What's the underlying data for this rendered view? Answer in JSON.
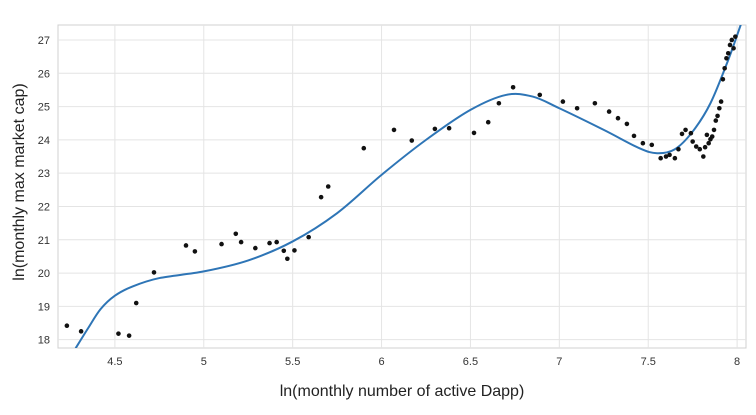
{
  "chart_data": {
    "type": "scatter",
    "xlabel": "ln(monthly number of active Dapp)",
    "ylabel": "ln(monthly max market cap)",
    "xlim": [
      4.18,
      8.05
    ],
    "ylim": [
      17.75,
      27.45
    ],
    "x_ticks": [
      4.5,
      5,
      5.5,
      6,
      6.5,
      7,
      7.5,
      8
    ],
    "x_tick_labels": [
      "4.5",
      "5",
      "5.5",
      "6",
      "6.5",
      "7",
      "7.5",
      "8"
    ],
    "y_ticks": [
      18,
      19,
      20,
      21,
      22,
      23,
      24,
      25,
      26,
      27
    ],
    "y_tick_labels": [
      "18",
      "19",
      "20",
      "21",
      "22",
      "23",
      "24",
      "25",
      "26",
      "27"
    ],
    "grid": true,
    "series": [
      {
        "kind": "scatter",
        "color": "#111111",
        "points": [
          [
            4.23,
            18.42
          ],
          [
            4.31,
            18.25
          ],
          [
            4.52,
            18.18
          ],
          [
            4.58,
            18.12
          ],
          [
            4.62,
            19.1
          ],
          [
            4.72,
            20.02
          ],
          [
            4.9,
            20.83
          ],
          [
            4.95,
            20.65
          ],
          [
            5.1,
            20.87
          ],
          [
            5.18,
            21.18
          ],
          [
            5.21,
            20.93
          ],
          [
            5.29,
            20.75
          ],
          [
            5.37,
            20.9
          ],
          [
            5.41,
            20.93
          ],
          [
            5.45,
            20.67
          ],
          [
            5.47,
            20.43
          ],
          [
            5.51,
            20.68
          ],
          [
            5.59,
            21.08
          ],
          [
            5.66,
            22.28
          ],
          [
            5.7,
            22.6
          ],
          [
            5.9,
            23.75
          ],
          [
            6.07,
            24.3
          ],
          [
            6.17,
            23.98
          ],
          [
            6.3,
            24.33
          ],
          [
            6.38,
            24.35
          ],
          [
            6.52,
            24.21
          ],
          [
            6.6,
            24.53
          ],
          [
            6.66,
            25.1
          ],
          [
            6.74,
            25.58
          ],
          [
            6.89,
            25.35
          ],
          [
            7.02,
            25.15
          ],
          [
            7.1,
            24.95
          ],
          [
            7.2,
            25.1
          ],
          [
            7.28,
            24.85
          ],
          [
            7.33,
            24.65
          ],
          [
            7.38,
            24.48
          ],
          [
            7.42,
            24.12
          ],
          [
            7.47,
            23.9
          ],
          [
            7.52,
            23.85
          ],
          [
            7.57,
            23.45
          ],
          [
            7.6,
            23.5
          ],
          [
            7.62,
            23.55
          ],
          [
            7.65,
            23.45
          ],
          [
            7.67,
            23.72
          ],
          [
            7.69,
            24.18
          ],
          [
            7.71,
            24.3
          ],
          [
            7.74,
            24.2
          ],
          [
            7.75,
            23.95
          ],
          [
            7.77,
            23.8
          ],
          [
            7.79,
            23.72
          ],
          [
            7.81,
            23.5
          ],
          [
            7.82,
            23.78
          ],
          [
            7.83,
            24.15
          ],
          [
            7.84,
            23.9
          ],
          [
            7.85,
            24.02
          ],
          [
            7.86,
            24.1
          ],
          [
            7.87,
            24.3
          ],
          [
            7.88,
            24.58
          ],
          [
            7.89,
            24.72
          ],
          [
            7.9,
            24.95
          ],
          [
            7.91,
            25.15
          ],
          [
            7.92,
            25.82
          ],
          [
            7.93,
            26.15
          ],
          [
            7.94,
            26.45
          ],
          [
            7.95,
            26.6
          ],
          [
            7.96,
            26.85
          ],
          [
            7.97,
            27.0
          ],
          [
            7.98,
            26.75
          ],
          [
            7.99,
            27.1
          ]
        ]
      },
      {
        "kind": "line",
        "color": "#2e75b6",
        "points": [
          [
            4.28,
            17.75
          ],
          [
            4.35,
            18.35
          ],
          [
            4.42,
            18.92
          ],
          [
            4.5,
            19.32
          ],
          [
            4.6,
            19.6
          ],
          [
            4.75,
            19.85
          ],
          [
            5.0,
            20.05
          ],
          [
            5.25,
            20.38
          ],
          [
            5.5,
            20.95
          ],
          [
            5.75,
            21.8
          ],
          [
            6.0,
            22.95
          ],
          [
            6.25,
            24.0
          ],
          [
            6.5,
            24.9
          ],
          [
            6.7,
            25.35
          ],
          [
            6.85,
            25.3
          ],
          [
            7.0,
            24.95
          ],
          [
            7.25,
            24.3
          ],
          [
            7.45,
            23.75
          ],
          [
            7.55,
            23.6
          ],
          [
            7.65,
            23.72
          ],
          [
            7.75,
            24.25
          ],
          [
            7.85,
            25.1
          ],
          [
            7.95,
            26.4
          ],
          [
            8.02,
            27.45
          ]
        ]
      }
    ]
  }
}
